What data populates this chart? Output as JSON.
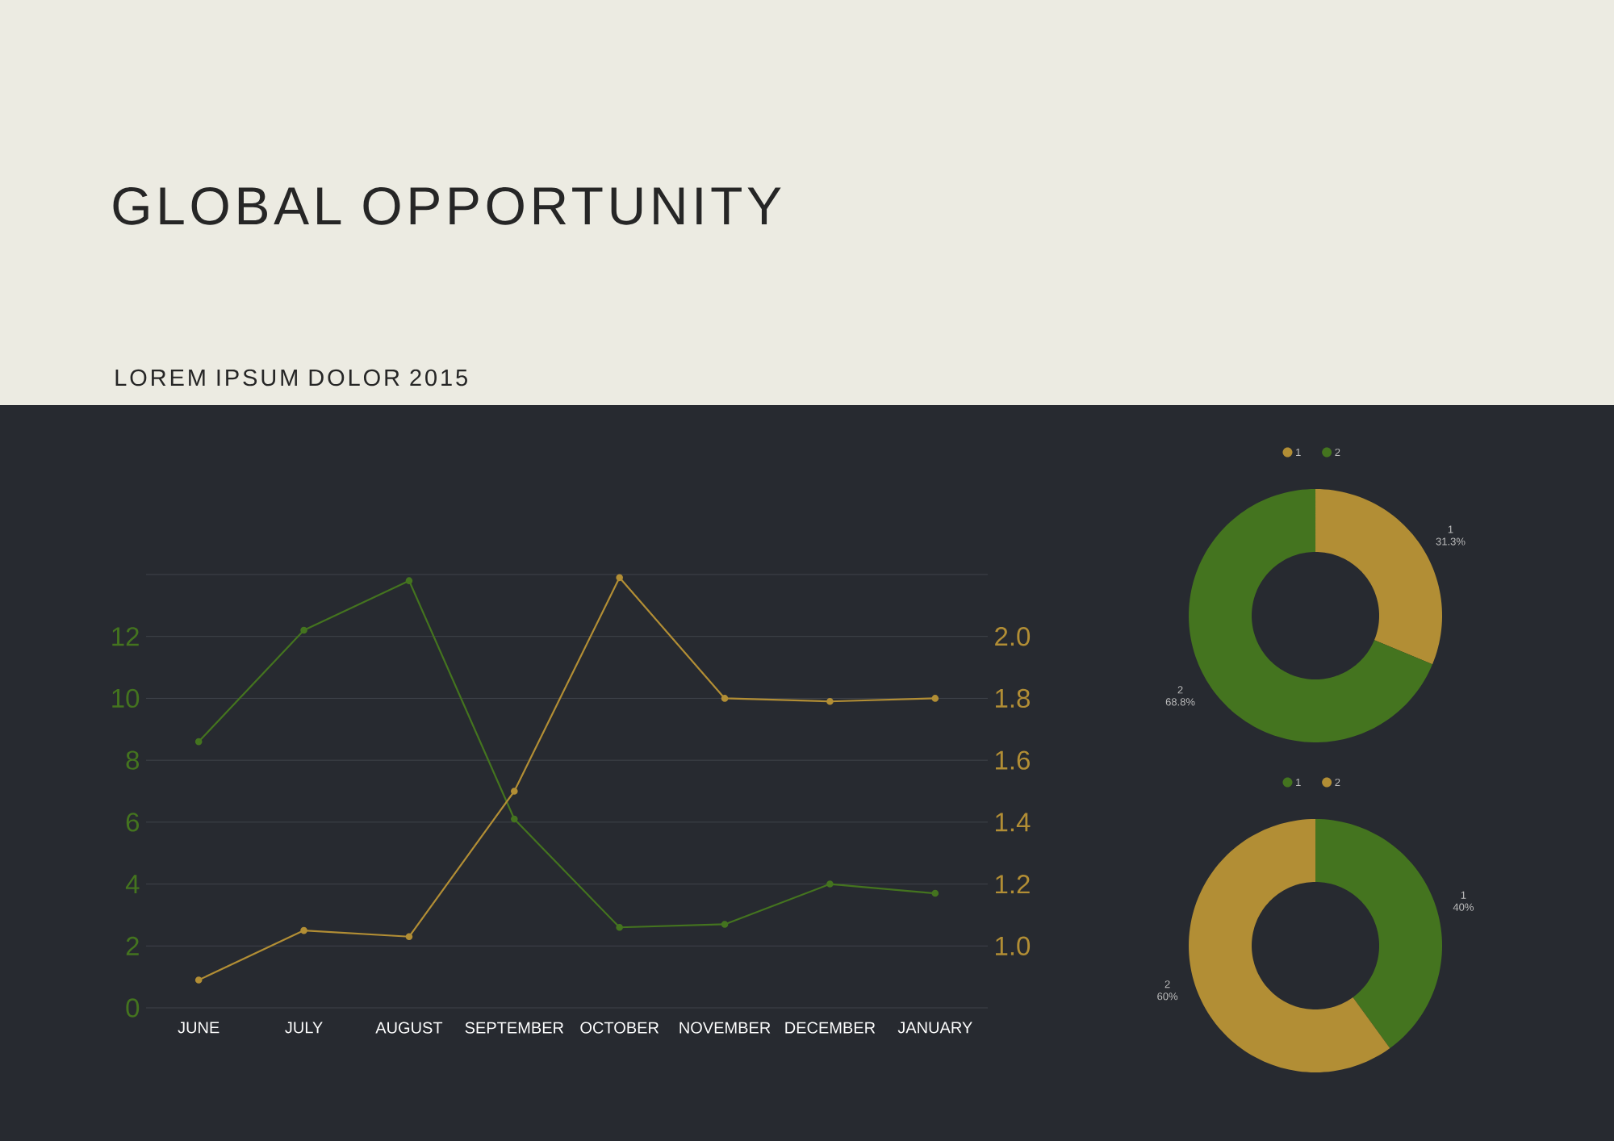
{
  "chart_data": [
    {
      "type": "line",
      "title": "GLOBAL OPPORTUNITY",
      "subtitle": "LOREM IPSUM DOLOR 2015",
      "categories": [
        "JUNE",
        "JULY",
        "AUGUST",
        "SEPTEMBER",
        "OCTOBER",
        "NOVEMBER",
        "DECEMBER",
        "JANUARY"
      ],
      "series": [
        {
          "color": "#44741f",
          "values": [
            8.6,
            12.2,
            13.8,
            6.1,
            2.6,
            2.7,
            4.0,
            3.7
          ]
        },
        {
          "color": "#b28e35",
          "axis": "y2",
          "values": [
            0.89,
            1.05,
            1.03,
            1.5,
            2.19,
            1.8,
            1.79,
            1.8
          ]
        }
      ],
      "ylim": [
        0,
        14
      ],
      "yticks": [
        0,
        2,
        4,
        6,
        8,
        10,
        12,
        {
          "value": 14,
          "label": null
        }
      ],
      "y2lim": [
        0.8,
        2.2
      ],
      "annotations": [
        "0"
      ],
      "y2ticks": [
        {
          "value": 0.8,
          "label": null
        },
        {
          "value": 1.0,
          "label": "1.0"
        },
        1.2,
        1.4,
        1.6,
        1.8,
        {
          "value": 2.0,
          "label": "2.0"
        },
        {
          "value": 2.2,
          "label": null
        }
      ],
      "grid": "y",
      "marker": "circle",
      "line_style": "solid"
    },
    {
      "type": "donut",
      "categories": [
        "1",
        "2"
      ],
      "values": [
        31.3,
        68.8
      ],
      "colors": [
        "#b28e35",
        "#44741f"
      ],
      "value_labels": [
        "31.3%",
        "68.8%"
      ],
      "legend": "top"
    },
    {
      "type": "donut",
      "categories": [
        "1",
        "2"
      ],
      "values": [
        40,
        60
      ],
      "colors": [
        "#44741f",
        "#b28e35"
      ],
      "value_labels": [
        "40%",
        "60%"
      ],
      "legend": "top"
    }
  ]
}
